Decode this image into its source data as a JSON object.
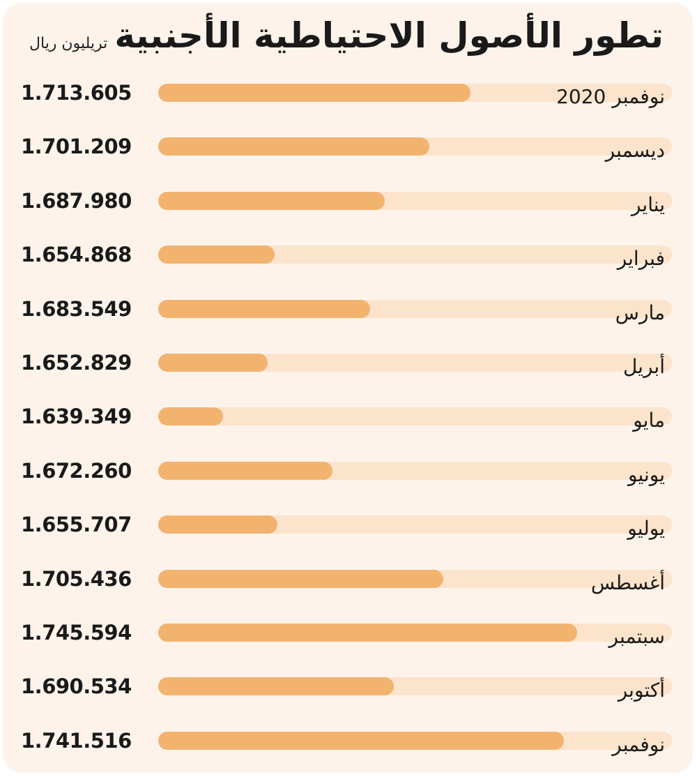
{
  "chart_data": {
    "type": "bar",
    "orientation": "horizontal",
    "title": "تطور الأصول الاحتياطية الأجنبية",
    "unit": "تريليون ريال",
    "xlim": [
      1620,
      1774
    ],
    "grid": false,
    "colors": {
      "fill": "#f2b36f",
      "track": "#fbe3cc",
      "background": "#fdf3ea"
    },
    "categories": [
      "نوفمبر 2020",
      "ديسمبر",
      "يناير",
      "فبراير",
      "مارس",
      "أبريل",
      "مايو",
      "يونيو",
      "يوليو",
      "أغسطس",
      "سبتمبر",
      "أكتوبر",
      "نوفمبر"
    ],
    "labels": [
      "1.713.605",
      "1.701.209",
      "1.687.980",
      "1.654.868",
      "1.683.549",
      "1.652.829",
      "1.639.349",
      "1.672.260",
      "1.655.707",
      "1.705.436",
      "1.745.594",
      "1.690.534",
      "1.741.516"
    ],
    "values": [
      1713.605,
      1701.209,
      1687.98,
      1654.868,
      1683.549,
      1652.829,
      1639.349,
      1672.26,
      1655.707,
      1705.436,
      1745.594,
      1690.534,
      1741.516
    ]
  }
}
